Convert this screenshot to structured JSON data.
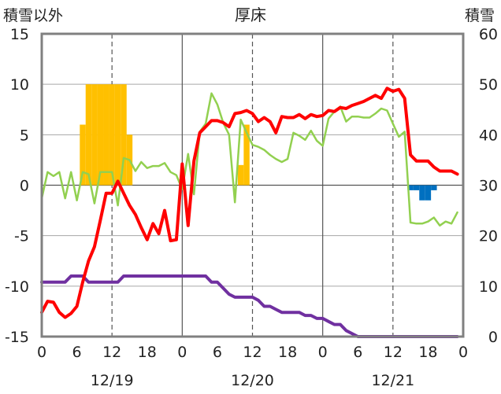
{
  "chart_data": {
    "type": "line",
    "title": "厚床",
    "left_axis_label": "積雪以外",
    "right_axis_label": "積雪",
    "ylim_left": [
      -15,
      15
    ],
    "yticks_left": [
      -15,
      -10,
      -5,
      0,
      5,
      10,
      15
    ],
    "ylim_right": [
      0,
      60
    ],
    "yticks_right": [
      0,
      10,
      20,
      30,
      40,
      50,
      60
    ],
    "xlim_hours": [
      0,
      72
    ],
    "xtick_labels": [
      "0",
      "6",
      "12",
      "18",
      "0",
      "6",
      "12",
      "18",
      "0",
      "6",
      "12",
      "18",
      "0"
    ],
    "date_labels": [
      {
        "label": "12/19",
        "hour": 12
      },
      {
        "label": "12/20",
        "hour": 36
      },
      {
        "label": "12/21",
        "hour": 60
      }
    ],
    "day_lines_hours": [
      24,
      48
    ],
    "dashed_lines_hours": [
      12,
      36,
      60
    ],
    "grid": true,
    "series": [
      {
        "color": "#ff0000",
        "axis": "left",
        "x": [
          0,
          1,
          2,
          3,
          4,
          5,
          6,
          7,
          8,
          9,
          10,
          11,
          12,
          13,
          14,
          15,
          16,
          17,
          18,
          19,
          20,
          21,
          22,
          23,
          24,
          25,
          26,
          27,
          28,
          29,
          30,
          31,
          32,
          33,
          34,
          35,
          36,
          37,
          38,
          39,
          40,
          41,
          42,
          43,
          44,
          45,
          46,
          47,
          48,
          49,
          50,
          51,
          52,
          53,
          54,
          55,
          56,
          57,
          58,
          59,
          60,
          61,
          62,
          63,
          64,
          65,
          66,
          67,
          68,
          69,
          70,
          71
        ],
        "values": [
          -12.6,
          -11.5,
          -11.6,
          -12.6,
          -13.1,
          -12.7,
          -12.0,
          -9.6,
          -7.5,
          -6.1,
          -3.5,
          -0.8,
          -0.8,
          0.4,
          -0.8,
          -2.0,
          -2.9,
          -4.2,
          -5.4,
          -3.8,
          -4.8,
          -2.5,
          -5.5,
          -5.4,
          2.1,
          -4.0,
          2.4,
          5.2,
          5.8,
          6.4,
          6.4,
          6.2,
          5.8,
          7.1,
          7.2,
          7.4,
          7.1,
          6.3,
          6.7,
          6.3,
          5.2,
          6.8,
          6.7,
          6.7,
          7.0,
          6.6,
          7.0,
          6.8,
          6.9,
          7.4,
          7.3,
          7.7,
          7.6,
          7.9,
          8.1,
          8.3,
          8.6,
          8.9,
          8.6,
          9.6,
          9.3,
          9.5,
          8.6,
          3.0,
          2.4,
          2.4,
          2.4,
          1.8,
          1.4,
          1.4,
          1.4,
          1.1
        ]
      },
      {
        "color": "#92d050",
        "axis": "left",
        "x": [
          0,
          1,
          2,
          3,
          4,
          5,
          6,
          7,
          8,
          9,
          10,
          11,
          12,
          13,
          14,
          15,
          16,
          17,
          18,
          19,
          20,
          21,
          22,
          23,
          24,
          25,
          26,
          27,
          28,
          29,
          30,
          31,
          32,
          33,
          34,
          35,
          36,
          37,
          38,
          39,
          40,
          41,
          42,
          43,
          44,
          45,
          46,
          47,
          48,
          49,
          50,
          51,
          52,
          53,
          54,
          55,
          56,
          57,
          58,
          59,
          60,
          61,
          62,
          63,
          64,
          65,
          66,
          67,
          68,
          69,
          70,
          71
        ],
        "values": [
          -1.3,
          1.3,
          0.9,
          1.3,
          -1.3,
          1.3,
          -1.5,
          1.3,
          1.1,
          -1.8,
          1.3,
          1.3,
          1.3,
          -2.0,
          2.7,
          2.5,
          1.4,
          2.3,
          1.7,
          1.9,
          1.9,
          2.2,
          1.3,
          1.0,
          -0.4,
          3.1,
          -0.9,
          5.3,
          6.1,
          9.1,
          8.0,
          6.2,
          5.0,
          -1.7,
          6.5,
          5.2,
          4.0,
          3.8,
          3.5,
          3.0,
          2.6,
          2.3,
          2.6,
          5.2,
          4.9,
          4.5,
          5.4,
          4.4,
          3.9,
          6.6,
          7.3,
          7.8,
          6.3,
          6.8,
          6.8,
          6.7,
          6.7,
          7.1,
          7.6,
          7.4,
          6.1,
          4.8,
          5.3,
          -3.7,
          -3.8,
          -3.8,
          -3.6,
          -3.2,
          -4.0,
          -3.6,
          -3.8,
          -2.7
        ]
      },
      {
        "color": "#7030a0",
        "axis": "left",
        "x": [
          0,
          2,
          4,
          5,
          6,
          7,
          8,
          9,
          10,
          11,
          12,
          13,
          14,
          16,
          18,
          20,
          22,
          24,
          26,
          28,
          29,
          30,
          31,
          32,
          33,
          34,
          35,
          36,
          37,
          38,
          39,
          40,
          41,
          42,
          43,
          44,
          45,
          46,
          47,
          48,
          49,
          50,
          51,
          52,
          53,
          54,
          56,
          58,
          60,
          62,
          64,
          66,
          68,
          70,
          71
        ],
        "values": [
          -9.6,
          -9.6,
          -9.6,
          -9.0,
          -9.0,
          -9.0,
          -9.6,
          -9.6,
          -9.6,
          -9.6,
          -9.6,
          -9.6,
          -9.0,
          -9.0,
          -9.0,
          -9.0,
          -9.0,
          -9.0,
          -9.0,
          -9.0,
          -9.6,
          -9.6,
          -10.2,
          -10.8,
          -11.1,
          -11.1,
          -11.1,
          -11.1,
          -11.4,
          -12.0,
          -12.0,
          -12.3,
          -12.6,
          -12.6,
          -12.6,
          -12.6,
          -12.9,
          -12.9,
          -13.2,
          -13.2,
          -13.5,
          -13.8,
          -13.8,
          -14.4,
          -14.7,
          -15.0,
          -15.0,
          -15.0,
          -15.0,
          -15.0,
          -15.0,
          -15.0,
          -15.0,
          -15.0,
          -15.0
        ]
      }
    ],
    "bars_orange": {
      "color": "#ffc000",
      "axis": "left",
      "x": [
        7,
        8,
        9,
        10,
        11,
        12,
        13,
        14,
        15,
        35
      ],
      "values": [
        6,
        10,
        10,
        10,
        10,
        10,
        10,
        10,
        5,
        6
      ]
    },
    "bars_orange_small": {
      "x": [
        34
      ],
      "values": [
        2
      ]
    },
    "bars_blue": {
      "color": "#0070c0",
      "axis": "left",
      "x": [
        63,
        64,
        65,
        66,
        67
      ],
      "values": [
        -0.5,
        -0.5,
        -1.5,
        -1.5,
        -0.5
      ]
    }
  }
}
